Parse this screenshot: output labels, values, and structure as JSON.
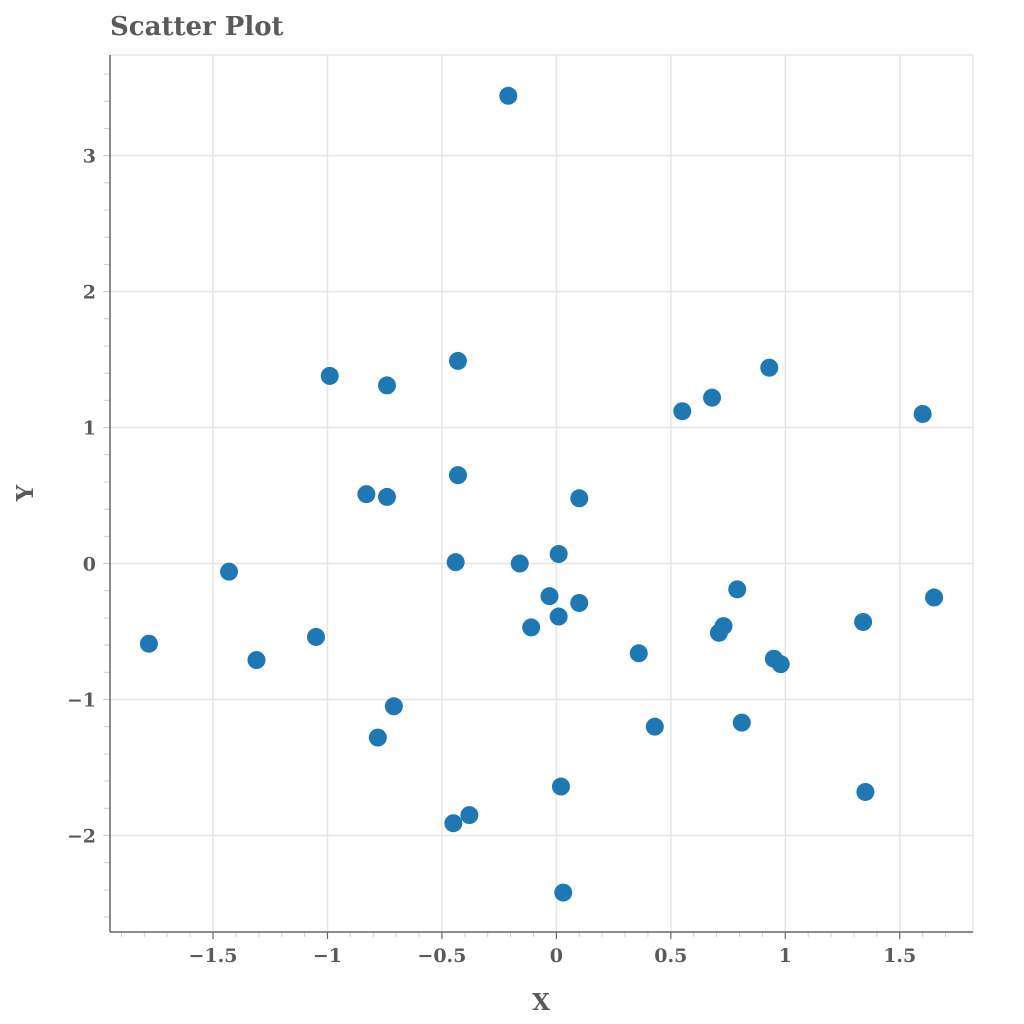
{
  "chart_data": {
    "type": "scatter",
    "title": "Scatter Plot",
    "xlabel": "X",
    "ylabel": "Y",
    "xlim": [
      -1.95,
      1.82
    ],
    "ylim": [
      -2.71,
      3.74
    ],
    "grid": true,
    "legend": null,
    "marker_color": "#1f77b4",
    "x_ticks": [
      -1.5,
      -1,
      -0.5,
      0,
      0.5,
      1,
      1.5
    ],
    "x_tick_labels": [
      "−1.5",
      "−1",
      "−0.5",
      "0",
      "0.5",
      "1",
      "1.5"
    ],
    "y_ticks": [
      -2,
      -1,
      0,
      1,
      2,
      3
    ],
    "y_tick_labels": [
      "−2",
      "−1",
      "0",
      "1",
      "2",
      "3"
    ],
    "points": [
      {
        "x": -0.21,
        "y": 3.44
      },
      {
        "x": -0.99,
        "y": 1.38
      },
      {
        "x": -0.74,
        "y": 1.31
      },
      {
        "x": -0.43,
        "y": 1.49
      },
      {
        "x": -0.83,
        "y": 0.51
      },
      {
        "x": -0.74,
        "y": 0.49
      },
      {
        "x": -0.43,
        "y": 0.65
      },
      {
        "x": 0.1,
        "y": 0.48
      },
      {
        "x": -1.43,
        "y": -0.06
      },
      {
        "x": -1.78,
        "y": -0.59
      },
      {
        "x": -1.31,
        "y": -0.71
      },
      {
        "x": -1.05,
        "y": -0.54
      },
      {
        "x": -0.44,
        "y": 0.01
      },
      {
        "x": -0.16,
        "y": 0.0
      },
      {
        "x": 0.01,
        "y": 0.07
      },
      {
        "x": -0.03,
        "y": -0.24
      },
      {
        "x": 0.1,
        "y": -0.29
      },
      {
        "x": 0.01,
        "y": -0.39
      },
      {
        "x": -0.11,
        "y": -0.47
      },
      {
        "x": -0.71,
        "y": -1.05
      },
      {
        "x": -0.78,
        "y": -1.28
      },
      {
        "x": 0.36,
        "y": -0.66
      },
      {
        "x": 0.43,
        "y": -1.2
      },
      {
        "x": 0.02,
        "y": -1.64
      },
      {
        "x": -0.38,
        "y": -1.85
      },
      {
        "x": -0.45,
        "y": -1.91
      },
      {
        "x": 0.03,
        "y": -2.42
      },
      {
        "x": 0.55,
        "y": 1.12
      },
      {
        "x": 0.68,
        "y": 1.22
      },
      {
        "x": 0.93,
        "y": 1.44
      },
      {
        "x": 1.6,
        "y": 1.1
      },
      {
        "x": 0.79,
        "y": -0.19
      },
      {
        "x": 0.73,
        "y": -0.46
      },
      {
        "x": 0.71,
        "y": -0.51
      },
      {
        "x": 0.95,
        "y": -0.7
      },
      {
        "x": 0.98,
        "y": -0.74
      },
      {
        "x": 0.81,
        "y": -1.17
      },
      {
        "x": 1.34,
        "y": -0.43
      },
      {
        "x": 1.65,
        "y": -0.25
      },
      {
        "x": 1.35,
        "y": -1.68
      }
    ]
  }
}
